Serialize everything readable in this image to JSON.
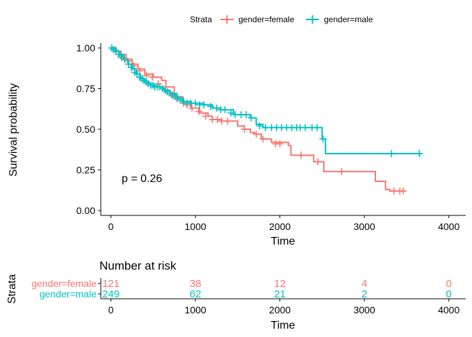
{
  "chart_data": [
    {
      "type": "line",
      "subtype": "kaplan-meier",
      "xlabel": "Time",
      "ylabel": "Survival probability",
      "xlim": [
        -120,
        4200
      ],
      "ylim": [
        -0.03,
        1.03
      ],
      "x_ticks": [
        0,
        1000,
        2000,
        3000,
        4000
      ],
      "y_ticks": [
        0.0,
        0.25,
        0.5,
        0.75,
        1.0
      ],
      "y_tick_labels": [
        "0.00",
        "0.25",
        "0.50",
        "0.75",
        "1.00"
      ],
      "x_tick_labels": [
        "0",
        "1000",
        "2000",
        "3000",
        "4000"
      ],
      "grid": false,
      "legend": {
        "title": "Strata",
        "position": "top"
      },
      "annotation": "p = 0.26",
      "series": [
        {
          "name": "gender=female",
          "color": "#F8766D",
          "steps": [
            [
              0,
              1.0
            ],
            [
              60,
              0.98
            ],
            [
              120,
              0.96
            ],
            [
              180,
              0.93
            ],
            [
              250,
              0.9
            ],
            [
              320,
              0.87
            ],
            [
              400,
              0.84
            ],
            [
              500,
              0.82
            ],
            [
              600,
              0.8
            ],
            [
              650,
              0.76
            ],
            [
              750,
              0.7
            ],
            [
              850,
              0.66
            ],
            [
              950,
              0.63
            ],
            [
              1050,
              0.6
            ],
            [
              1150,
              0.58
            ],
            [
              1200,
              0.56
            ],
            [
              1300,
              0.55
            ],
            [
              1450,
              0.55
            ],
            [
              1500,
              0.52
            ],
            [
              1580,
              0.5
            ],
            [
              1650,
              0.48
            ],
            [
              1700,
              0.47
            ],
            [
              1780,
              0.44
            ],
            [
              1900,
              0.42
            ],
            [
              2100,
              0.4
            ],
            [
              2130,
              0.34
            ],
            [
              2400,
              0.3
            ],
            [
              2520,
              0.24
            ],
            [
              3130,
              0.18
            ],
            [
              3250,
              0.13
            ],
            [
              3300,
              0.12
            ],
            [
              3480,
              0.12
            ]
          ],
          "censors": [
            [
              50,
              0.99
            ],
            [
              130,
              0.94
            ],
            [
              200,
              0.92
            ],
            [
              270,
              0.89
            ],
            [
              340,
              0.86
            ],
            [
              420,
              0.83
            ],
            [
              490,
              0.82
            ],
            [
              560,
              0.78
            ],
            [
              650,
              0.74
            ],
            [
              720,
              0.71
            ],
            [
              780,
              0.69
            ],
            [
              860,
              0.66
            ],
            [
              900,
              0.65
            ],
            [
              960,
              0.63
            ],
            [
              1040,
              0.61
            ],
            [
              1120,
              0.58
            ],
            [
              1200,
              0.56
            ],
            [
              1260,
              0.56
            ],
            [
              1310,
              0.55
            ],
            [
              1380,
              0.55
            ],
            [
              1580,
              0.5
            ],
            [
              1720,
              0.47
            ],
            [
              1800,
              0.44
            ],
            [
              1950,
              0.41
            ],
            [
              2000,
              0.41
            ],
            [
              2250,
              0.34
            ],
            [
              2450,
              0.3
            ],
            [
              2730,
              0.24
            ],
            [
              3350,
              0.12
            ],
            [
              3420,
              0.12
            ],
            [
              3460,
              0.12
            ]
          ]
        },
        {
          "name": "gender=male",
          "color": "#00BFC4",
          "steps": [
            [
              0,
              1.0
            ],
            [
              50,
              0.98
            ],
            [
              100,
              0.96
            ],
            [
              150,
              0.93
            ],
            [
              200,
              0.9
            ],
            [
              250,
              0.87
            ],
            [
              300,
              0.84
            ],
            [
              350,
              0.81
            ],
            [
              400,
              0.79
            ],
            [
              450,
              0.78
            ],
            [
              500,
              0.76
            ],
            [
              550,
              0.76
            ],
            [
              620,
              0.74
            ],
            [
              700,
              0.72
            ],
            [
              780,
              0.69
            ],
            [
              860,
              0.67
            ],
            [
              950,
              0.66
            ],
            [
              1100,
              0.65
            ],
            [
              1200,
              0.63
            ],
            [
              1300,
              0.62
            ],
            [
              1450,
              0.59
            ],
            [
              1550,
              0.59
            ],
            [
              1650,
              0.57
            ],
            [
              1720,
              0.53
            ],
            [
              1800,
              0.51
            ],
            [
              2300,
              0.51
            ],
            [
              2480,
              0.51
            ],
            [
              2500,
              0.44
            ],
            [
              2540,
              0.35
            ],
            [
              3680,
              0.35
            ]
          ],
          "censors": [
            [
              10,
              1.0
            ],
            [
              30,
              0.99
            ],
            [
              60,
              0.98
            ],
            [
              90,
              0.96
            ],
            [
              120,
              0.95
            ],
            [
              160,
              0.93
            ],
            [
              210,
              0.9
            ],
            [
              240,
              0.88
            ],
            [
              280,
              0.85
            ],
            [
              310,
              0.84
            ],
            [
              340,
              0.82
            ],
            [
              370,
              0.81
            ],
            [
              390,
              0.8
            ],
            [
              420,
              0.79
            ],
            [
              440,
              0.78
            ],
            [
              470,
              0.77
            ],
            [
              500,
              0.77
            ],
            [
              520,
              0.76
            ],
            [
              550,
              0.76
            ],
            [
              580,
              0.76
            ],
            [
              610,
              0.75
            ],
            [
              640,
              0.74
            ],
            [
              670,
              0.73
            ],
            [
              700,
              0.72
            ],
            [
              730,
              0.71
            ],
            [
              760,
              0.7
            ],
            [
              790,
              0.69
            ],
            [
              820,
              0.68
            ],
            [
              860,
              0.67
            ],
            [
              900,
              0.66
            ],
            [
              940,
              0.66
            ],
            [
              1000,
              0.66
            ],
            [
              1050,
              0.65
            ],
            [
              1100,
              0.65
            ],
            [
              1180,
              0.64
            ],
            [
              1250,
              0.63
            ],
            [
              1300,
              0.62
            ],
            [
              1350,
              0.62
            ],
            [
              1420,
              0.6
            ],
            [
              1470,
              0.59
            ],
            [
              1540,
              0.59
            ],
            [
              1600,
              0.59
            ],
            [
              1660,
              0.57
            ],
            [
              1760,
              0.52
            ],
            [
              1830,
              0.51
            ],
            [
              1900,
              0.51
            ],
            [
              1960,
              0.51
            ],
            [
              2020,
              0.51
            ],
            [
              2080,
              0.51
            ],
            [
              2140,
              0.51
            ],
            [
              2200,
              0.51
            ],
            [
              2240,
              0.51
            ],
            [
              2300,
              0.51
            ],
            [
              2380,
              0.51
            ],
            [
              2440,
              0.51
            ],
            [
              2510,
              0.44
            ],
            [
              3320,
              0.35
            ],
            [
              3650,
              0.35
            ]
          ]
        }
      ]
    },
    {
      "type": "table",
      "title": "Number at risk",
      "xlabel": "Time",
      "ylabel": "Strata",
      "xlim": [
        -120,
        4200
      ],
      "x_ticks": [
        0,
        1000,
        2000,
        3000,
        4000
      ],
      "x_tick_labels": [
        "0",
        "1000",
        "2000",
        "3000",
        "4000"
      ],
      "rows": [
        {
          "name": "gender=female",
          "color": "#F8766D",
          "values": [
            121,
            38,
            12,
            4,
            0
          ]
        },
        {
          "name": "gender=male",
          "color": "#00BFC4",
          "values": [
            249,
            62,
            21,
            2,
            0
          ]
        }
      ]
    }
  ]
}
